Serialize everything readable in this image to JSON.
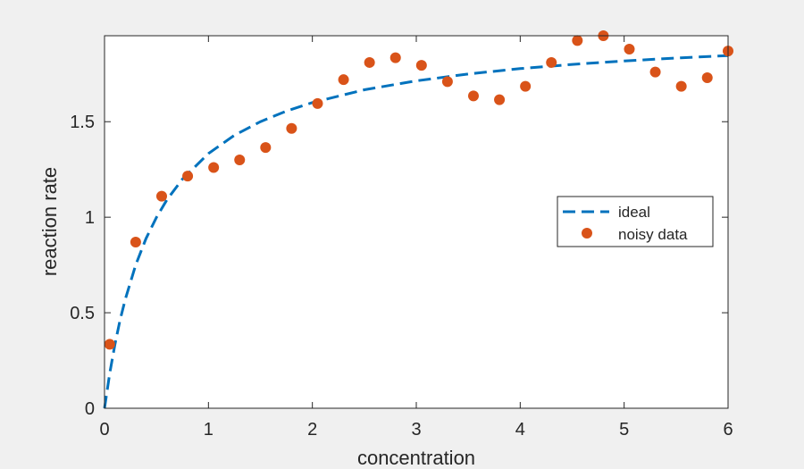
{
  "chart_data": {
    "type": "scatter",
    "xlabel": "concentration",
    "ylabel": "reaction rate",
    "xlim": [
      0,
      6
    ],
    "ylim": [
      0,
      1.95
    ],
    "xticks": [
      0,
      1,
      2,
      3,
      4,
      5,
      6
    ],
    "yticks": [
      0,
      0.5,
      1,
      1.5
    ],
    "xtick_labels": [
      "0",
      "1",
      "2",
      "3",
      "4",
      "5",
      "6"
    ],
    "ytick_labels": [
      "0",
      "0.5",
      "1",
      "1.5"
    ],
    "grid": false,
    "legend_position": "right",
    "series": [
      {
        "name": "ideal",
        "style": "dashed-line",
        "color": "#0072bd",
        "x": [
          0,
          0.05,
          0.1,
          0.15,
          0.2,
          0.3,
          0.4,
          0.5,
          0.6,
          0.75,
          1,
          1.25,
          1.5,
          1.75,
          2,
          2.5,
          3,
          3.5,
          4,
          4.5,
          5,
          5.5,
          6
        ],
        "y": [
          0,
          0.182,
          0.333,
          0.462,
          0.571,
          0.75,
          0.889,
          1.0,
          1.091,
          1.2,
          1.333,
          1.429,
          1.5,
          1.556,
          1.6,
          1.667,
          1.714,
          1.75,
          1.778,
          1.8,
          1.818,
          1.833,
          1.846
        ]
      },
      {
        "name": "noisy data",
        "style": "markers",
        "color": "#d95319",
        "x": [
          0.05,
          0.3,
          0.55,
          0.8,
          1.05,
          1.3,
          1.55,
          1.8,
          2.05,
          2.3,
          2.55,
          2.8,
          3.05,
          3.3,
          3.55,
          3.8,
          4.05,
          4.3,
          4.55,
          4.8,
          5.05,
          5.3,
          5.55,
          5.8,
          6.0
        ],
        "y": [
          0.335,
          0.87,
          1.11,
          1.215,
          1.26,
          1.3,
          1.365,
          1.465,
          1.595,
          1.72,
          1.81,
          1.835,
          1.795,
          1.71,
          1.635,
          1.615,
          1.685,
          1.81,
          1.925,
          1.95,
          1.88,
          1.76,
          1.685,
          1.73,
          1.87
        ]
      }
    ]
  }
}
